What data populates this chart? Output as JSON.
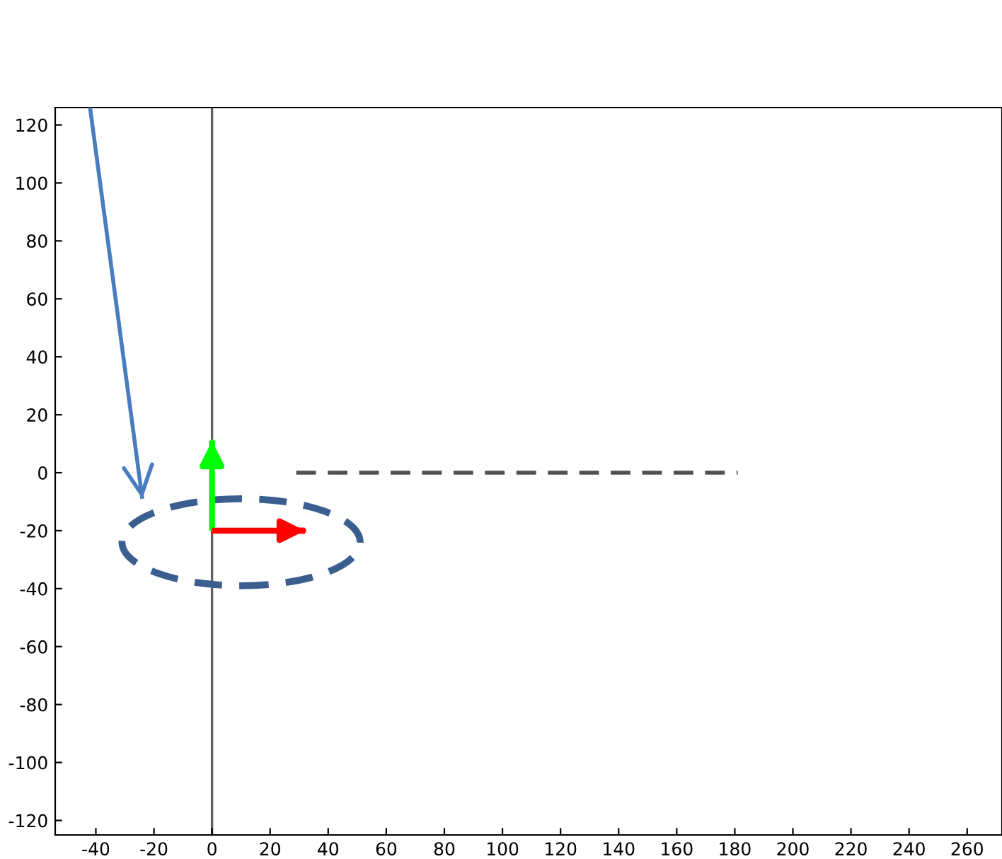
{
  "chart_data": {
    "type": "line",
    "xlim": [
      -54,
      272
    ],
    "ylim": [
      -125,
      126
    ],
    "xticks": [
      -40,
      -20,
      0,
      20,
      40,
      60,
      80,
      100,
      120,
      140,
      160,
      180,
      200,
      220,
      240,
      260
    ],
    "yticks": [
      -120,
      -100,
      -80,
      -60,
      -40,
      -20,
      0,
      20,
      40,
      60,
      80,
      100,
      120
    ],
    "grid": false,
    "marker": "none",
    "ref_lines": [
      {
        "axis": "x",
        "value": 0,
        "color": "#606060",
        "line_style": "solid"
      }
    ],
    "series": [
      {
        "color": "#505050",
        "line_style": "dashed",
        "x": [
          29,
          181
        ],
        "values": [
          0,
          0
        ]
      },
      {
        "color": "#4a7cc0",
        "line_style": "solid",
        "x": [
          -42,
          -24
        ],
        "values": [
          126,
          -9
        ]
      },
      {
        "color": "#00ff00",
        "line_style": "solid",
        "x": [
          0,
          0
        ],
        "values": [
          -20,
          11
        ]
      },
      {
        "color": "#ff0000",
        "line_style": "solid",
        "x": [
          0,
          32
        ],
        "values": [
          -20,
          -20
        ]
      }
    ]
  }
}
